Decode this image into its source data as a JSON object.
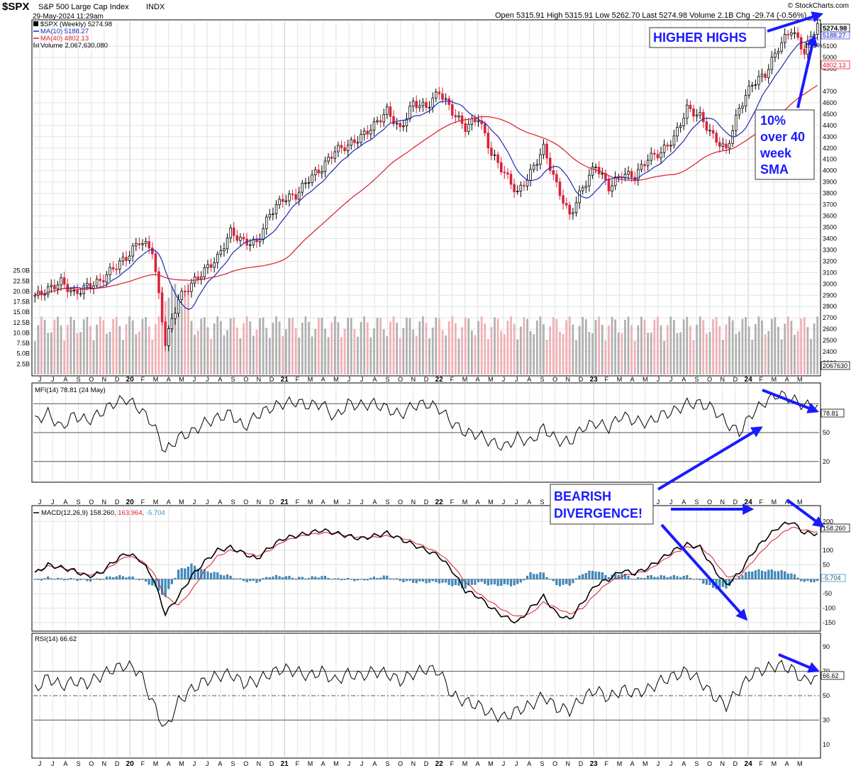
{
  "header": {
    "symbol": "$SPX",
    "name": "S&P 500 Large Cap Index",
    "exchange": "INDX",
    "date": "29-May-2024 11:29am",
    "watermark": "© StockCharts.com",
    "quote": {
      "open_label": "Open",
      "open": "5315.91",
      "high_label": "High",
      "high": "5315.91",
      "low_label": "Low",
      "low": "5262.70",
      "last_label": "Last",
      "last": "5274.98",
      "volume_label": "Volume",
      "volume": "2.1B",
      "chg_label": "Chg",
      "chg": "-29.74 (-0.56%)"
    }
  },
  "legend": {
    "price": "$SPX (Weekly) 5274.98",
    "ma10": "MA(10) 5188.27",
    "ma40": "MA(40) 4802.13",
    "volume": "Volume 2,067,630,080",
    "mfi": "MFI(14) 78.81 (24 May)",
    "macd_name": "MACD(12,26,9)",
    "macd_val": "158.260,",
    "macd_signal": "163.964,",
    "macd_hist": "-5.704",
    "rsi": "RSI(14) 66.62"
  },
  "colors": {
    "up_candle": "#ffffff",
    "down_candle": "#d8233a",
    "ma10": "#1b2bb5",
    "ma40": "#d81c2c",
    "volume_up": "#b0b0b0",
    "volume_down": "#f0b0b4",
    "macd_hist": "#3b8fc4",
    "overbought_fill": "#5a7f5a",
    "annotation": "#1a1aff",
    "grid": "#e3e3e3"
  },
  "price_axis": {
    "ticks": [
      "5100",
      "5000",
      "4900",
      "4700",
      "4600",
      "4500",
      "4400",
      "4300",
      "4200",
      "4100",
      "4000",
      "3900",
      "3800",
      "3700",
      "3600",
      "3500",
      "3400",
      "3300",
      "3200",
      "3100",
      "3000",
      "2900",
      "2800",
      "2700",
      "2600",
      "2500",
      "2400",
      "2300"
    ],
    "last_badge": "5274.98",
    "ma10_badge": "5188.27",
    "ma40_badge": "4802.13",
    "pct_label": "10.1%"
  },
  "volume_axis": {
    "ticks": [
      "25.0B",
      "22.5B",
      "20.0B",
      "17.5B",
      "15.0B",
      "12.5B",
      "10.0B",
      "7.5B",
      "5.0B",
      "2.5B"
    ],
    "last_badge": "2067630"
  },
  "mfi_axis": {
    "ticks": [
      "50",
      "20"
    ],
    "last_badge": "78.81"
  },
  "macd_axis": {
    "ticks": [
      "200",
      "100",
      "50",
      "-50",
      "-100",
      "-150"
    ],
    "last_badge": "158.260",
    "hist_badge": "-5.704"
  },
  "rsi_axis": {
    "ticks": [
      "90",
      "70",
      "50",
      "30",
      "10"
    ],
    "last_badge": "66.62"
  },
  "months": [
    {
      "t": "J",
      "b": false
    },
    {
      "t": "J",
      "b": false
    },
    {
      "t": "A",
      "b": false
    },
    {
      "t": "S",
      "b": false
    },
    {
      "t": "O",
      "b": false
    },
    {
      "t": "N",
      "b": false
    },
    {
      "t": "D",
      "b": false
    },
    {
      "t": "20",
      "b": true
    },
    {
      "t": "F",
      "b": false
    },
    {
      "t": "M",
      "b": false
    },
    {
      "t": "A",
      "b": false
    },
    {
      "t": "M",
      "b": false
    },
    {
      "t": "J",
      "b": false
    },
    {
      "t": "J",
      "b": false
    },
    {
      "t": "A",
      "b": false
    },
    {
      "t": "S",
      "b": false
    },
    {
      "t": "O",
      "b": false
    },
    {
      "t": "N",
      "b": false
    },
    {
      "t": "D",
      "b": false
    },
    {
      "t": "21",
      "b": true
    },
    {
      "t": "F",
      "b": false
    },
    {
      "t": "M",
      "b": false
    },
    {
      "t": "A",
      "b": false
    },
    {
      "t": "M",
      "b": false
    },
    {
      "t": "J",
      "b": false
    },
    {
      "t": "J",
      "b": false
    },
    {
      "t": "A",
      "b": false
    },
    {
      "t": "S",
      "b": false
    },
    {
      "t": "O",
      "b": false
    },
    {
      "t": "N",
      "b": false
    },
    {
      "t": "D",
      "b": false
    },
    {
      "t": "22",
      "b": true
    },
    {
      "t": "F",
      "b": false
    },
    {
      "t": "M",
      "b": false
    },
    {
      "t": "A",
      "b": false
    },
    {
      "t": "M",
      "b": false
    },
    {
      "t": "J",
      "b": false
    },
    {
      "t": "J",
      "b": false
    },
    {
      "t": "A",
      "b": false
    },
    {
      "t": "S",
      "b": false
    },
    {
      "t": "O",
      "b": false
    },
    {
      "t": "N",
      "b": false
    },
    {
      "t": "D",
      "b": false
    },
    {
      "t": "23",
      "b": true
    },
    {
      "t": "F",
      "b": false
    },
    {
      "t": "M",
      "b": false
    },
    {
      "t": "A",
      "b": false
    },
    {
      "t": "M",
      "b": false
    },
    {
      "t": "J",
      "b": false
    },
    {
      "t": "J",
      "b": false
    },
    {
      "t": "A",
      "b": false
    },
    {
      "t": "S",
      "b": false
    },
    {
      "t": "O",
      "b": false
    },
    {
      "t": "N",
      "b": false
    },
    {
      "t": "D",
      "b": false
    },
    {
      "t": "24",
      "b": true
    },
    {
      "t": "F",
      "b": false
    },
    {
      "t": "M",
      "b": false
    },
    {
      "t": "A",
      "b": false
    },
    {
      "t": "M",
      "b": false
    }
  ],
  "annotations": {
    "higher_highs": "HIGHER HIGHS",
    "ten_pct": [
      "10%",
      "over 40",
      "week",
      "SMA"
    ],
    "bearish": [
      "BEARISH",
      "DIVERGENCE!"
    ]
  },
  "chart_data": {
    "type": "candlestick",
    "title": "$SPX S&P 500 Large Cap Index INDX",
    "interval": "weekly",
    "date_range": [
      "2019-06",
      "2024-05"
    ],
    "x_labels": [
      "J",
      "J",
      "A",
      "S",
      "O",
      "N",
      "D",
      "20",
      "F",
      "M",
      "A",
      "M",
      "J",
      "J",
      "A",
      "S",
      "O",
      "N",
      "D",
      "21",
      "F",
      "M",
      "A",
      "M",
      "J",
      "J",
      "A",
      "S",
      "O",
      "N",
      "D",
      "22",
      "F",
      "M",
      "A",
      "M",
      "J",
      "J",
      "A",
      "S",
      "O",
      "N",
      "D",
      "23",
      "F",
      "M",
      "A",
      "M",
      "J",
      "J",
      "A",
      "S",
      "O",
      "N",
      "D",
      "24",
      "F",
      "M",
      "A",
      "M"
    ],
    "price_close_by_month": [
      2890,
      2950,
      3020,
      2910,
      2980,
      3020,
      3140,
      3230,
      3380,
      3300,
      2480,
      2870,
      3000,
      3120,
      3230,
      3460,
      3370,
      3360,
      3620,
      3750,
      3780,
      3930,
      4020,
      4180,
      4220,
      4300,
      4400,
      4530,
      4360,
      4600,
      4560,
      4700,
      4520,
      4380,
      4470,
      4150,
      3980,
      3800,
      3980,
      4200,
      3870,
      3600,
      3850,
      4050,
      3850,
      3970,
      3950,
      4110,
      4160,
      4290,
      4550,
      4480,
      4300,
      4180,
      4550,
      4770,
      4850,
      5090,
      5250,
      5050,
      5300
    ],
    "price_ylim": [
      2200,
      5320
    ],
    "price_last": 5274.98,
    "ma10_last": 5188.27,
    "ma40_last": 4802.13,
    "volume_ylim_billions": [
      0,
      27
    ],
    "volume_last": 2067630080,
    "mfi_by_month": [
      62,
      70,
      55,
      68,
      62,
      70,
      80,
      85,
      75,
      60,
      30,
      45,
      50,
      60,
      65,
      70,
      55,
      68,
      75,
      80,
      82,
      78,
      80,
      65,
      80,
      78,
      80,
      75,
      68,
      78,
      80,
      75,
      60,
      50,
      48,
      40,
      35,
      45,
      40,
      55,
      42,
      40,
      55,
      60,
      55,
      68,
      62,
      60,
      68,
      72,
      80,
      80,
      75,
      60,
      50,
      70,
      82,
      90,
      85,
      78,
      78.81
    ],
    "mfi_ylim": [
      0,
      100
    ],
    "mfi_levels": [
      80,
      50,
      20
    ],
    "macd_by_month": [
      20,
      50,
      40,
      30,
      10,
      20,
      60,
      90,
      70,
      10,
      -120,
      -60,
      10,
      60,
      100,
      110,
      90,
      70,
      110,
      140,
      150,
      160,
      170,
      160,
      150,
      140,
      150,
      160,
      140,
      120,
      100,
      80,
      30,
      -40,
      -60,
      -100,
      -130,
      -150,
      -100,
      -60,
      -120,
      -140,
      -80,
      -20,
      0,
      30,
      20,
      40,
      70,
      100,
      120,
      110,
      40,
      -20,
      20,
      90,
      140,
      180,
      200,
      160,
      158.26
    ],
    "macd_signal_by_month": [
      25,
      45,
      40,
      30,
      15,
      20,
      50,
      80,
      70,
      30,
      -60,
      -90,
      -40,
      30,
      80,
      100,
      95,
      80,
      100,
      130,
      145,
      155,
      160,
      160,
      150,
      145,
      145,
      150,
      145,
      130,
      110,
      90,
      50,
      -10,
      -50,
      -80,
      -110,
      -130,
      -120,
      -80,
      -100,
      -120,
      -100,
      -50,
      -10,
      10,
      20,
      30,
      60,
      90,
      110,
      115,
      70,
      10,
      10,
      60,
      110,
      150,
      180,
      170,
      163.964
    ],
    "macd_hist_by_month": [
      -5,
      5,
      0,
      0,
      -5,
      0,
      10,
      10,
      0,
      -20,
      -60,
      30,
      50,
      30,
      20,
      10,
      -5,
      -10,
      10,
      10,
      5,
      5,
      10,
      0,
      0,
      -5,
      5,
      10,
      -5,
      -10,
      -10,
      -10,
      -20,
      -30,
      -10,
      -20,
      -20,
      -20,
      20,
      20,
      -20,
      -20,
      20,
      30,
      10,
      20,
      0,
      10,
      10,
      10,
      10,
      -5,
      -30,
      -30,
      10,
      30,
      30,
      30,
      20,
      -10,
      -5.704
    ],
    "macd_ylim": [
      -175,
      250
    ],
    "rsi_by_month": [
      55,
      65,
      58,
      62,
      60,
      66,
      72,
      75,
      70,
      45,
      22,
      45,
      55,
      62,
      66,
      68,
      60,
      62,
      68,
      72,
      70,
      66,
      70,
      62,
      68,
      66,
      70,
      68,
      62,
      68,
      72,
      70,
      50,
      45,
      42,
      35,
      32,
      38,
      42,
      50,
      40,
      38,
      48,
      55,
      48,
      55,
      52,
      55,
      62,
      66,
      70,
      62,
      50,
      42,
      55,
      68,
      72,
      75,
      72,
      62,
      66.62
    ],
    "rsi_ylim": [
      0,
      100
    ],
    "rsi_levels": [
      70,
      50,
      30
    ]
  }
}
